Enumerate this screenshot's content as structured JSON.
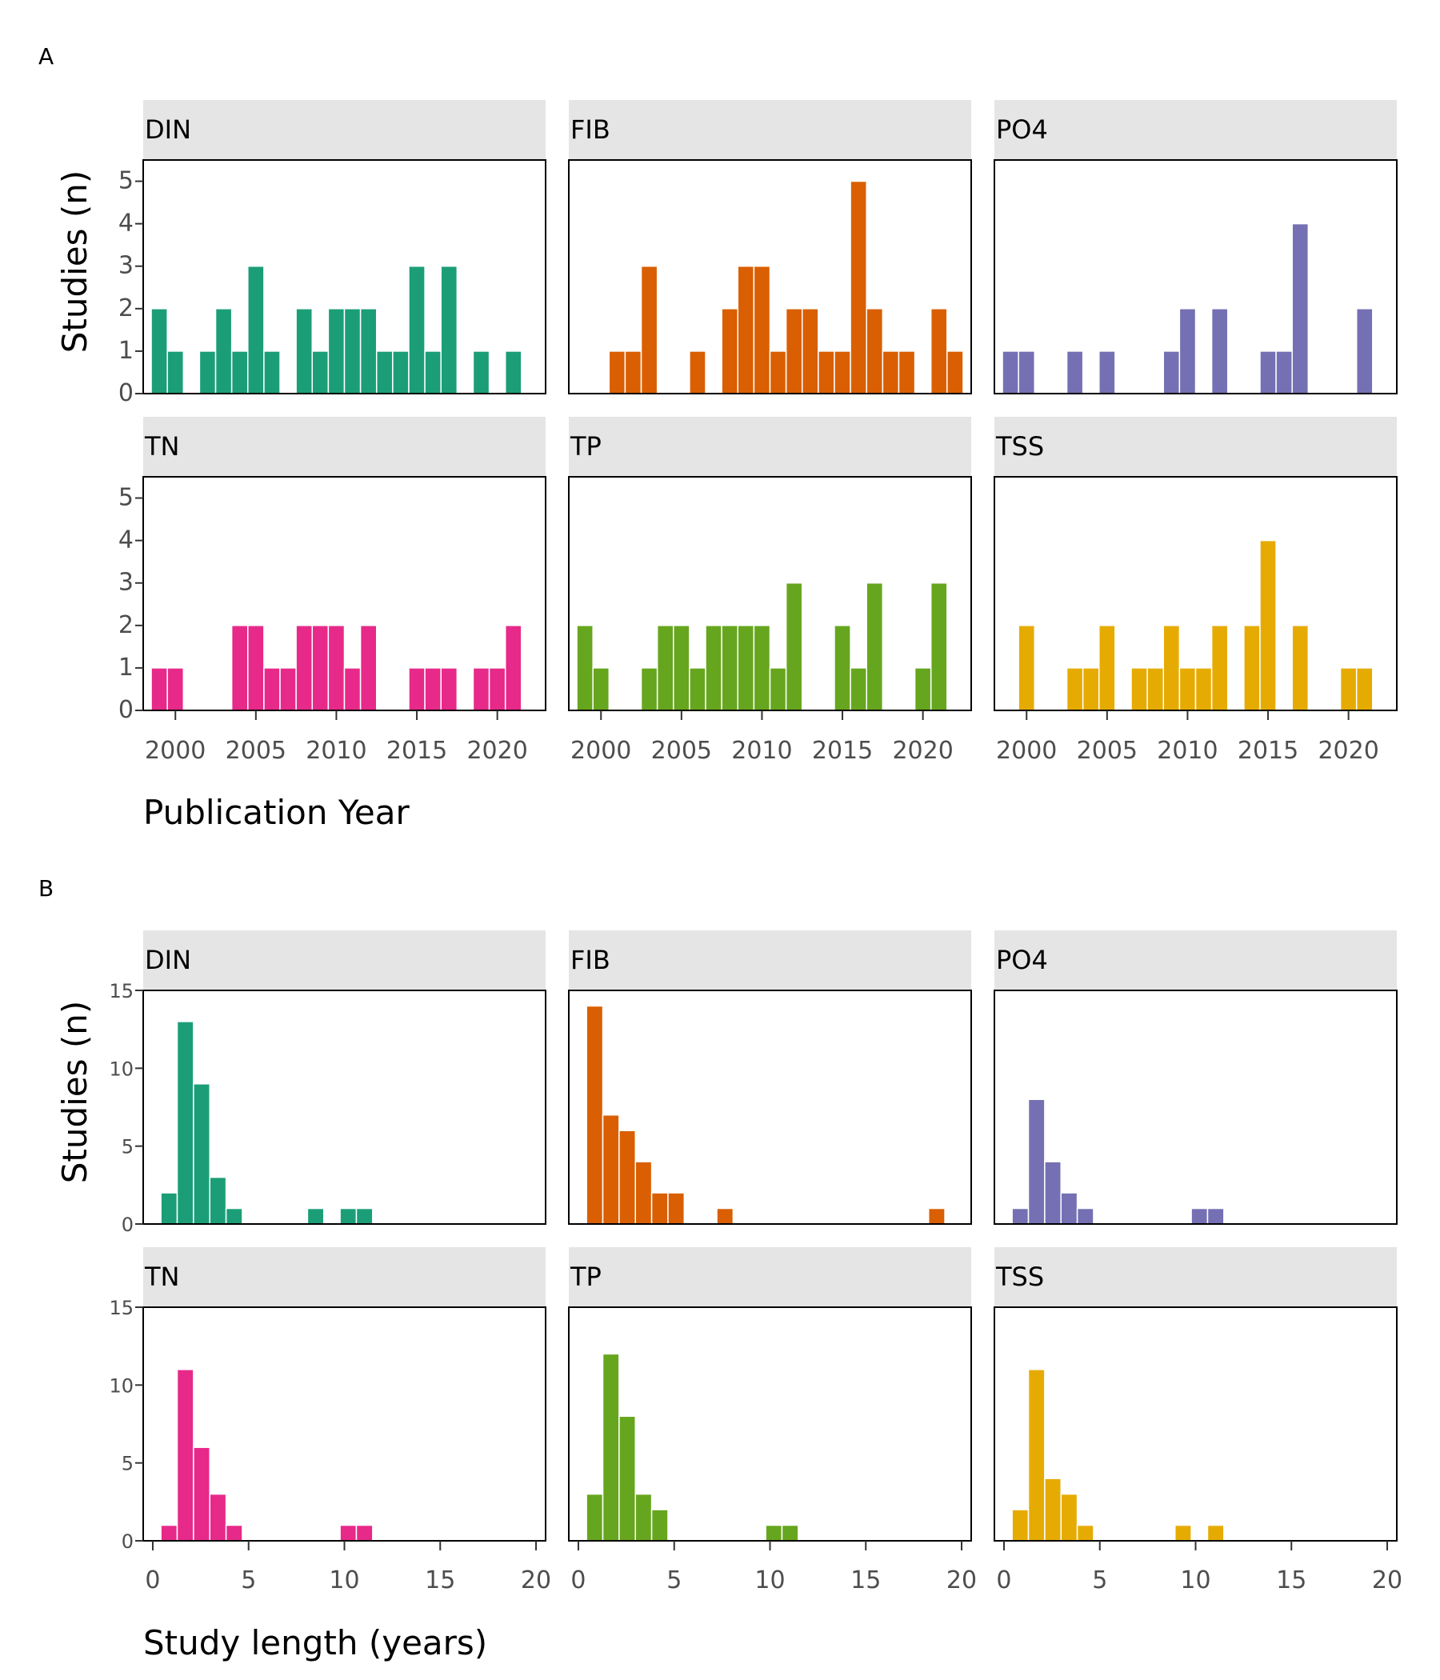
{
  "colors": {
    "DIN": "#1b9e77",
    "FIB": "#d95f02",
    "PO4": "#7570b3",
    "TN": "#e7298a",
    "TP": "#66a61e",
    "TSS": "#e6ab02",
    "strip": "#e5e5e5"
  },
  "chart_data": [
    {
      "type": "bar",
      "panel_label": "A",
      "xlabel": "Publication Year",
      "ylabel": "Studies (n)",
      "xlim": [
        1998,
        2023
      ],
      "ylim": [
        0,
        5.5
      ],
      "x_ticks": [
        2000,
        2005,
        2010,
        2015,
        2020
      ],
      "y_ticks": [
        0,
        1,
        2,
        3,
        4,
        5
      ],
      "bin_width": 1,
      "x": [
        1999,
        2000,
        2001,
        2002,
        2003,
        2004,
        2005,
        2006,
        2007,
        2008,
        2009,
        2010,
        2011,
        2012,
        2013,
        2014,
        2015,
        2016,
        2017,
        2018,
        2019,
        2020,
        2021,
        2022
      ],
      "series": [
        {
          "name": "DIN",
          "values": [
            2,
            1,
            0,
            1,
            2,
            1,
            3,
            1,
            0,
            2,
            1,
            2,
            2,
            2,
            1,
            1,
            3,
            1,
            3,
            0,
            1,
            0,
            1,
            0
          ]
        },
        {
          "name": "FIB",
          "values": [
            0,
            0,
            1,
            1,
            3,
            0,
            0,
            1,
            0,
            2,
            3,
            3,
            1,
            2,
            2,
            1,
            1,
            5,
            2,
            1,
            1,
            0,
            2,
            1
          ]
        },
        {
          "name": "PO4",
          "values": [
            1,
            1,
            0,
            0,
            1,
            0,
            1,
            0,
            0,
            0,
            1,
            2,
            0,
            2,
            0,
            0,
            1,
            1,
            4,
            0,
            0,
            0,
            2,
            0
          ]
        },
        {
          "name": "TN",
          "values": [
            1,
            1,
            0,
            0,
            0,
            2,
            2,
            1,
            1,
            2,
            2,
            2,
            1,
            2,
            0,
            0,
            1,
            1,
            1,
            0,
            1,
            1,
            2,
            0
          ]
        },
        {
          "name": "TP",
          "values": [
            2,
            1,
            0,
            0,
            1,
            2,
            2,
            1,
            2,
            2,
            2,
            2,
            1,
            3,
            0,
            0,
            2,
            1,
            3,
            0,
            0,
            1,
            3,
            0
          ]
        },
        {
          "name": "TSS",
          "values": [
            0,
            2,
            0,
            0,
            1,
            1,
            2,
            0,
            1,
            1,
            2,
            1,
            1,
            2,
            0,
            2,
            4,
            0,
            2,
            0,
            0,
            1,
            1,
            0
          ]
        }
      ]
    },
    {
      "type": "bar",
      "panel_label": "B",
      "xlabel": "Study length (years)",
      "ylabel": "Studies (n)",
      "xlim": [
        -0.5,
        20.5
      ],
      "ylim": [
        0,
        15
      ],
      "x_ticks": [
        0,
        5,
        10,
        15,
        20
      ],
      "y_ticks": [
        0,
        5,
        10,
        15
      ],
      "bin_width": 0.85,
      "x": [
        0.85,
        1.7,
        2.55,
        3.4,
        4.25,
        5.1,
        5.95,
        6.8,
        7.65,
        8.5,
        9.35,
        10.2,
        11.05,
        11.9,
        12.75,
        13.6,
        14.45,
        15.3,
        16.15,
        17.0,
        17.85,
        18.7,
        19.55
      ],
      "series": [
        {
          "name": "DIN",
          "values": [
            2,
            13,
            9,
            3,
            1,
            0,
            0,
            0,
            0,
            1,
            0,
            1,
            1,
            0,
            0,
            0,
            0,
            0,
            0,
            0,
            0,
            0,
            0
          ]
        },
        {
          "name": "FIB",
          "values": [
            14,
            7,
            6,
            4,
            2,
            2,
            0,
            0,
            1,
            0,
            0,
            0,
            0,
            0,
            0,
            0,
            0,
            0,
            0,
            0,
            0,
            1,
            0
          ]
        },
        {
          "name": "PO4",
          "values": [
            1,
            8,
            4,
            2,
            1,
            0,
            0,
            0,
            0,
            0,
            0,
            1,
            1,
            0,
            0,
            0,
            0,
            0,
            0,
            0,
            0,
            0,
            0
          ]
        },
        {
          "name": "TN",
          "values": [
            1,
            11,
            6,
            3,
            1,
            0,
            0,
            0,
            0,
            0,
            0,
            1,
            1,
            0,
            0,
            0,
            0,
            0,
            0,
            0,
            0,
            0,
            0
          ]
        },
        {
          "name": "TP",
          "values": [
            3,
            12,
            8,
            3,
            2,
            0,
            0,
            0,
            0,
            0,
            0,
            1,
            1,
            0,
            0,
            0,
            0,
            0,
            0,
            0,
            0,
            0,
            0
          ]
        },
        {
          "name": "TSS",
          "values": [
            2,
            11,
            4,
            3,
            1,
            0,
            0,
            0,
            0,
            0,
            1,
            0,
            1,
            0,
            0,
            0,
            0,
            0,
            0,
            0,
            0,
            0,
            0
          ]
        }
      ]
    }
  ]
}
